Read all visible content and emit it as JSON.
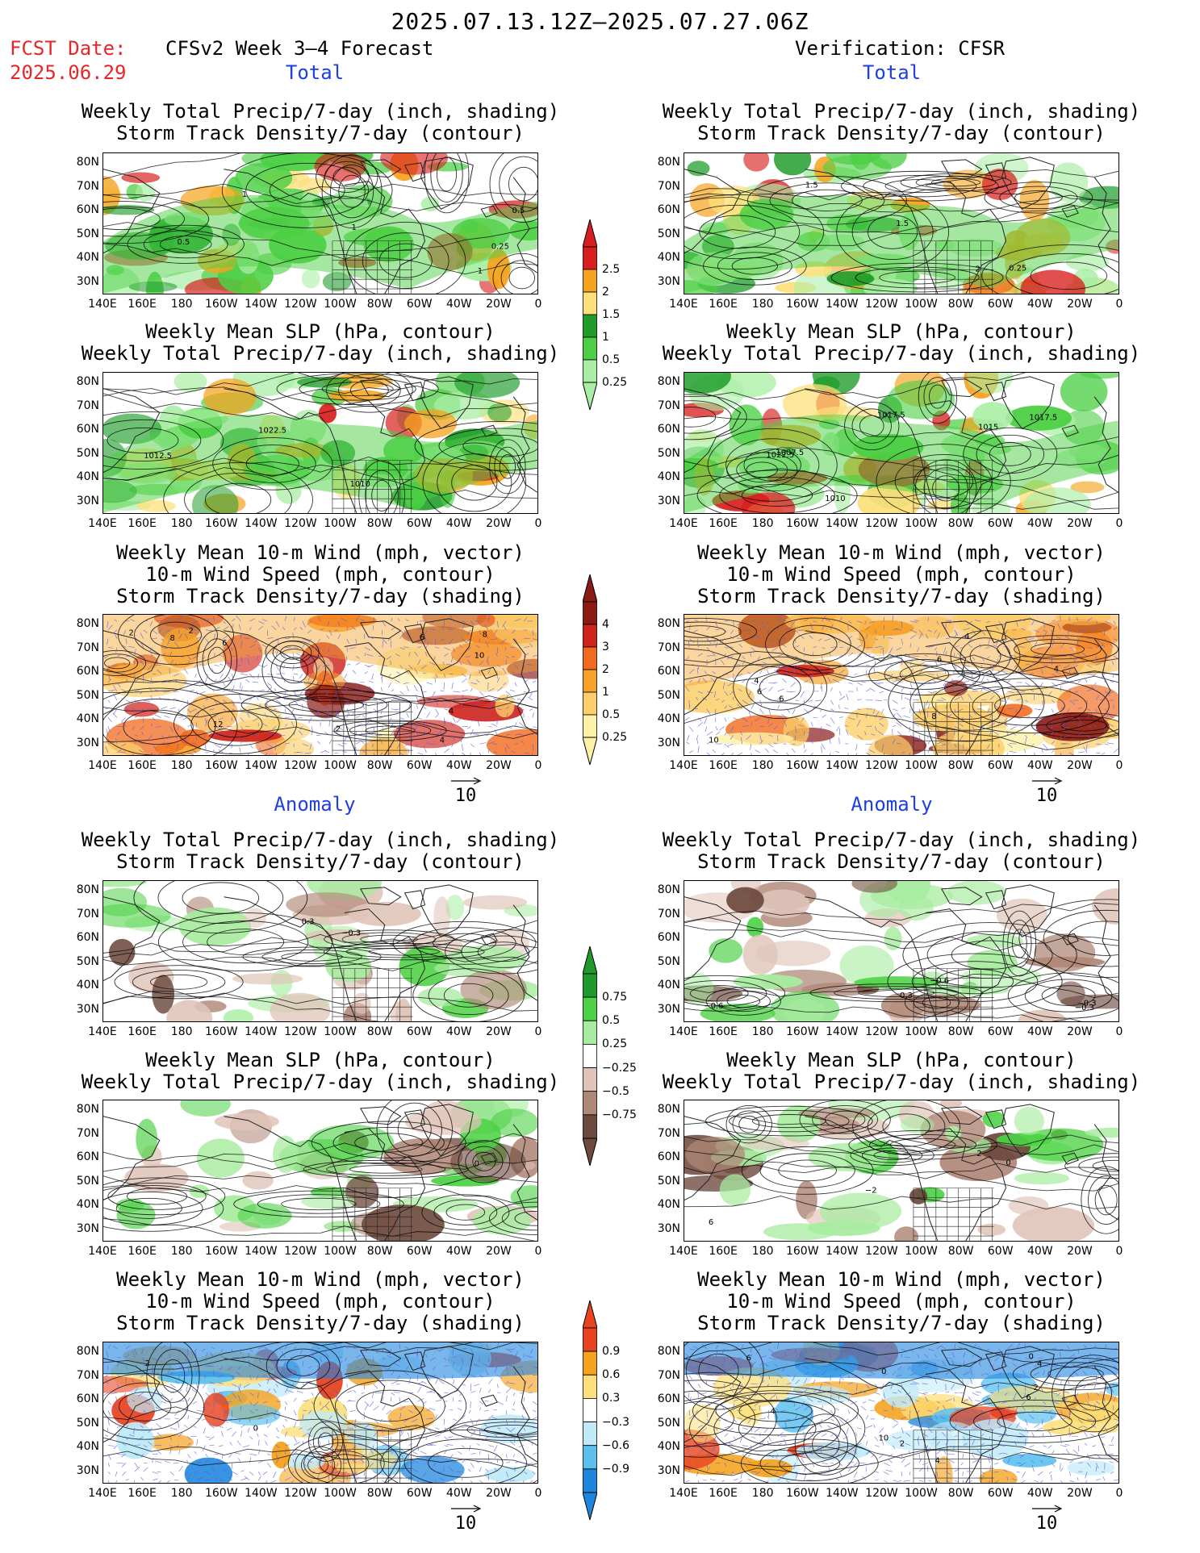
{
  "title": "2025.07.13.12Z–2025.07.27.06Z",
  "fcst_label": "FCST Date:",
  "fcst_date": "2025.06.29",
  "left_header": "CFSv2 Week 3–4 Forecast",
  "right_header": "Verification: CFSR",
  "section_total": "Total",
  "section_anomaly": "Anomaly",
  "lat_labels": [
    "80N",
    "70N",
    "60N",
    "50N",
    "40N",
    "30N"
  ],
  "lon_labels": [
    "140E",
    "160E",
    "180",
    "160W",
    "140W",
    "120W",
    "100W",
    "80W",
    "60W",
    "40W",
    "20W",
    "0"
  ],
  "panel_titles": {
    "precip_storm": [
      "Weekly Total Precip/7‑day (inch, shading)",
      "Storm Track Density/7‑day (contour)"
    ],
    "slp_precip": [
      "Weekly Mean SLP (hPa, contour)",
      "Weekly Total Precip/7‑day (inch, shading)"
    ],
    "wind_storm": [
      "Weekly Mean 10‑m Wind (mph, vector)",
      "10‑m Wind Speed (mph, contour)",
      "Storm Track Density/7‑day (shading)"
    ]
  },
  "vector_ref": "10",
  "colorbars": {
    "precip_total": {
      "labels": [
        "2.5",
        "2",
        "1.5",
        "1",
        "0.5",
        "0.25"
      ],
      "colors": [
        "#d81e1e",
        "#f5a21c",
        "#fde07a",
        "#1f9c2a",
        "#4ccf44",
        "#a9eea4"
      ]
    },
    "storm_total": {
      "labels": [
        "4",
        "3",
        "2",
        "1",
        "0.5",
        "0.25"
      ],
      "colors": [
        "#8c1a14",
        "#d0231a",
        "#f26a1c",
        "#f7a128",
        "#fccf6a",
        "#fdf1a8"
      ]
    },
    "precip_anom": {
      "labels": [
        "0.75",
        "0.5",
        "0.25",
        "−0.25",
        "−0.5",
        "−0.75"
      ],
      "colors": [
        "#1e9a2a",
        "#4dd145",
        "#a8eca0",
        "#ffffff",
        "#e0c4b8",
        "#b08878",
        "#6e4a3e"
      ]
    },
    "storm_anom": {
      "labels": [
        "0.9",
        "0.6",
        "0.3",
        "−0.3",
        "−0.6",
        "−0.9"
      ],
      "colors": [
        "#e8421e",
        "#f5a21c",
        "#fde07a",
        "#ffffff",
        "#bfeaf8",
        "#5bc0ee",
        "#1f86e0"
      ]
    }
  },
  "contour_labels": {
    "l1": [
      "0.5",
      "1",
      "0.25",
      "1",
      "1",
      "0.5"
    ],
    "r1": [
      "1.5",
      "2",
      "0.25",
      "1.5"
    ],
    "l2": [
      "1010",
      "1012.5",
      "1022.5"
    ],
    "r2": [
      "1015",
      "1017.5",
      "1007.5",
      "1010",
      "1017.5",
      "1022.5"
    ],
    "l3": [
      "2",
      "4",
      "6",
      "2",
      "6",
      "4",
      "2",
      "8",
      "10",
      "12",
      "8"
    ],
    "r3": [
      "6",
      "6",
      "6",
      "4",
      "4",
      "8",
      "4",
      "10"
    ],
    "l4": [
      "0.3",
      "−0.3"
    ],
    "r4": [
      "−0.6",
      "−0.3",
      "−0.6",
      "−0.3",
      "0.3"
    ],
    "l5": [
      "0"
    ],
    "r5": [
      "6",
      "2",
      "−2",
      "0"
    ],
    "l6": [
      "0",
      "2"
    ],
    "r6": [
      "0",
      "10",
      "6",
      "4",
      "4",
      "2",
      "0",
      "6",
      "4",
      "2"
    ]
  }
}
